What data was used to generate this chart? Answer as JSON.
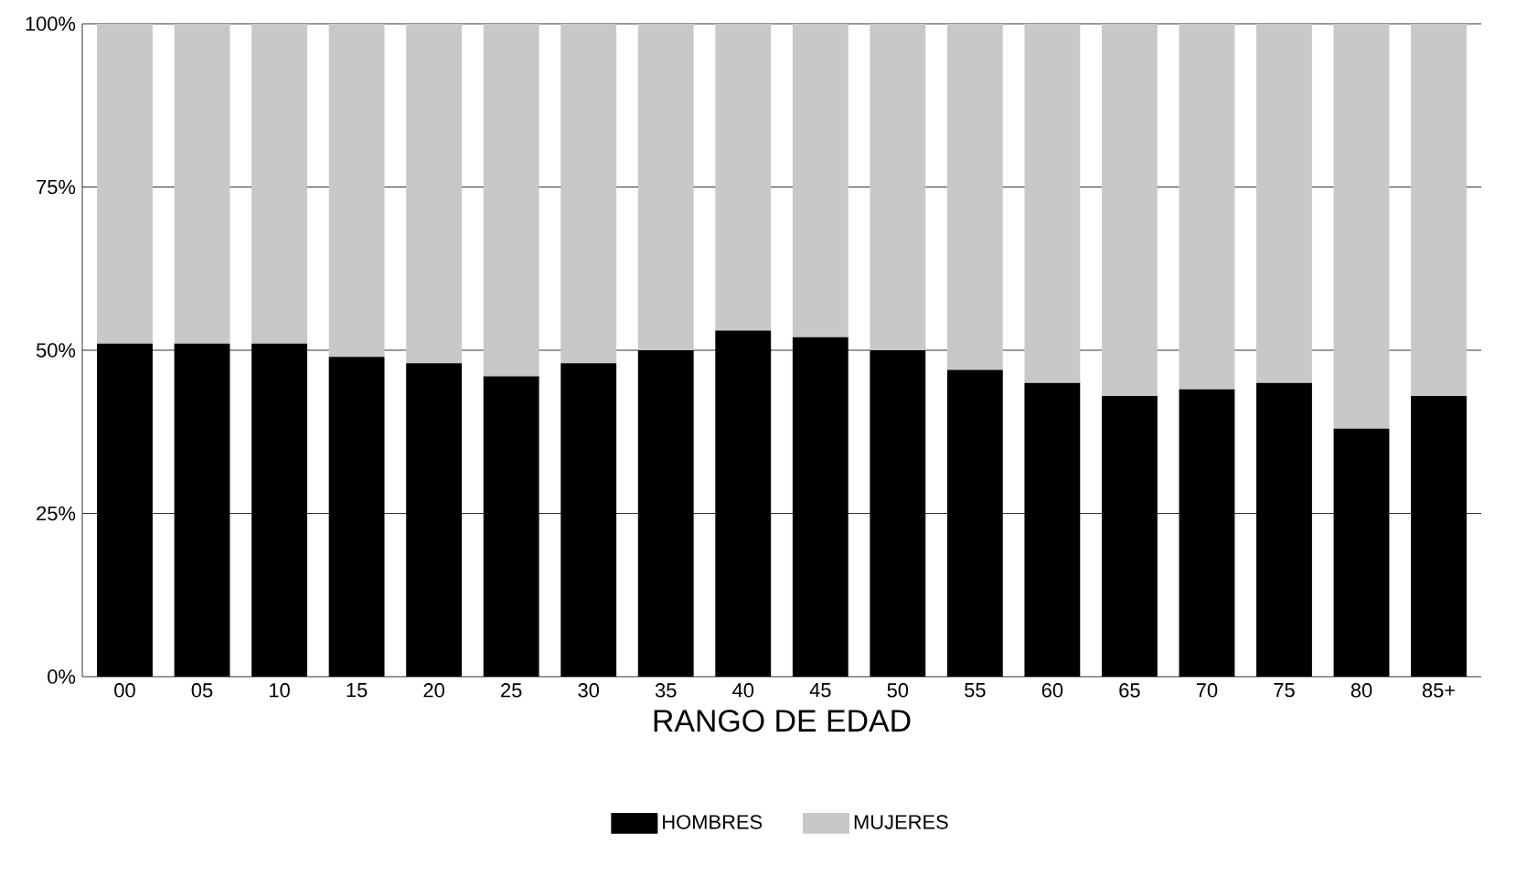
{
  "chart_data": {
    "type": "bar",
    "stacked": true,
    "xlabel": "RANGO DE EDAD",
    "categories": [
      "00",
      "05",
      "10",
      "15",
      "20",
      "25",
      "30",
      "35",
      "40",
      "45",
      "50",
      "55",
      "60",
      "65",
      "70",
      "75",
      "80",
      "85+"
    ],
    "series": [
      {
        "name": "HOMBRES",
        "color": "#000000",
        "values": [
          51,
          51,
          51,
          49,
          48,
          46,
          48,
          50,
          53,
          52,
          50,
          47,
          45,
          43,
          44,
          45,
          38,
          43
        ]
      },
      {
        "name": "MUJERES",
        "color": "#c8c8c8",
        "values": [
          49,
          49,
          49,
          51,
          52,
          54,
          52,
          50,
          47,
          48,
          50,
          53,
          55,
          57,
          56,
          55,
          62,
          57
        ]
      }
    ],
    "ylim": [
      0,
      100
    ],
    "yticks": [
      {
        "value": 0,
        "label": "0%"
      },
      {
        "value": 25,
        "label": "25%"
      },
      {
        "value": 50,
        "label": "50%"
      },
      {
        "value": 75,
        "label": "75%"
      },
      {
        "value": 100,
        "label": "100%"
      }
    ],
    "grid": "y",
    "legend": "bottom"
  }
}
